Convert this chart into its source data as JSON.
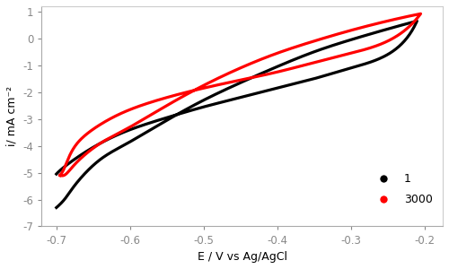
{
  "xlabel": "E / V vs Ag/AgCl",
  "ylabel": "i/ mA cm⁻²",
  "xlim": [
    -0.72,
    -0.175
  ],
  "ylim": [
    -7,
    1.2
  ],
  "xticks": [
    -0.7,
    -0.6,
    -0.5,
    -0.4,
    -0.3,
    -0.2
  ],
  "yticks": [
    -7,
    -6,
    -5,
    -4,
    -3,
    -2,
    -1,
    0,
    1
  ],
  "legend_labels": [
    "1",
    "3000"
  ],
  "curve1_color": "#000000",
  "curve2_color": "#ff0000",
  "linewidth": 2.3,
  "background_color": "#ffffff",
  "black_upper": {
    "x": [
      -0.7,
      -0.69,
      -0.67,
      -0.64,
      -0.6,
      -0.55,
      -0.5,
      -0.45,
      -0.4,
      -0.35,
      -0.3,
      -0.25,
      -0.21
    ],
    "y": [
      -5.05,
      -4.8,
      -4.4,
      -3.9,
      -3.4,
      -2.95,
      -2.55,
      -2.2,
      -1.85,
      -1.5,
      -1.1,
      -0.6,
      0.65
    ]
  },
  "black_lower": {
    "x": [
      -0.21,
      -0.25,
      -0.3,
      -0.35,
      -0.4,
      -0.45,
      -0.5,
      -0.55,
      -0.6,
      -0.64,
      -0.67,
      -0.685,
      -0.7
    ],
    "y": [
      0.65,
      0.35,
      -0.05,
      -0.5,
      -1.05,
      -1.65,
      -2.3,
      -3.05,
      -3.85,
      -4.5,
      -5.3,
      -5.85,
      -6.3
    ]
  },
  "red_upper": {
    "x": [
      -0.695,
      -0.685,
      -0.67,
      -0.64,
      -0.6,
      -0.55,
      -0.5,
      -0.45,
      -0.4,
      -0.35,
      -0.3,
      -0.25,
      -0.205
    ],
    "y": [
      -5.1,
      -4.55,
      -3.85,
      -3.2,
      -2.65,
      -2.2,
      -1.85,
      -1.55,
      -1.25,
      -0.9,
      -0.55,
      -0.1,
      0.92
    ]
  },
  "red_lower": {
    "x": [
      -0.205,
      -0.25,
      -0.3,
      -0.35,
      -0.4,
      -0.45,
      -0.5,
      -0.55,
      -0.6,
      -0.64,
      -0.67,
      -0.685,
      -0.695
    ],
    "y": [
      0.92,
      0.65,
      0.3,
      -0.1,
      -0.55,
      -1.1,
      -1.75,
      -2.5,
      -3.3,
      -3.9,
      -4.55,
      -5.0,
      -5.1
    ]
  }
}
